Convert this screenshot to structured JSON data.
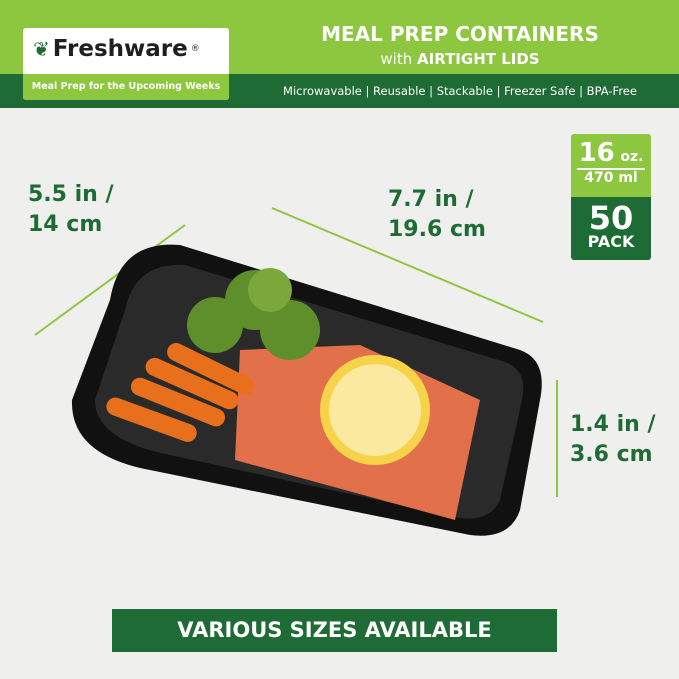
{
  "brand": {
    "name": "Freshware",
    "registered": "®",
    "tagline": "Meal Prep for the Upcoming Weeks"
  },
  "header": {
    "title": "MEAL PREP CONTAINERS",
    "subtitle_prefix": "with",
    "subtitle_bold": "AIRTIGHT LIDS",
    "features": "Microwavable | Reusable | Stackable | Freezer Safe | BPA-Free"
  },
  "dimensions": {
    "width": [
      "5.5 in /",
      "14 cm"
    ],
    "length": [
      "7.7 in /",
      "19.6 cm"
    ],
    "height": [
      "1.4 in /",
      "3.6 cm"
    ]
  },
  "badge": {
    "oz": "16",
    "oz_unit": "oz.",
    "ml": "470 ml",
    "count": "50",
    "pack": "PACK"
  },
  "footer": "VARIOUS SIZES AVAILABLE",
  "colors": {
    "light_green": "#8dc63f",
    "dark_green": "#1f6b35",
    "background": "#efefed"
  }
}
